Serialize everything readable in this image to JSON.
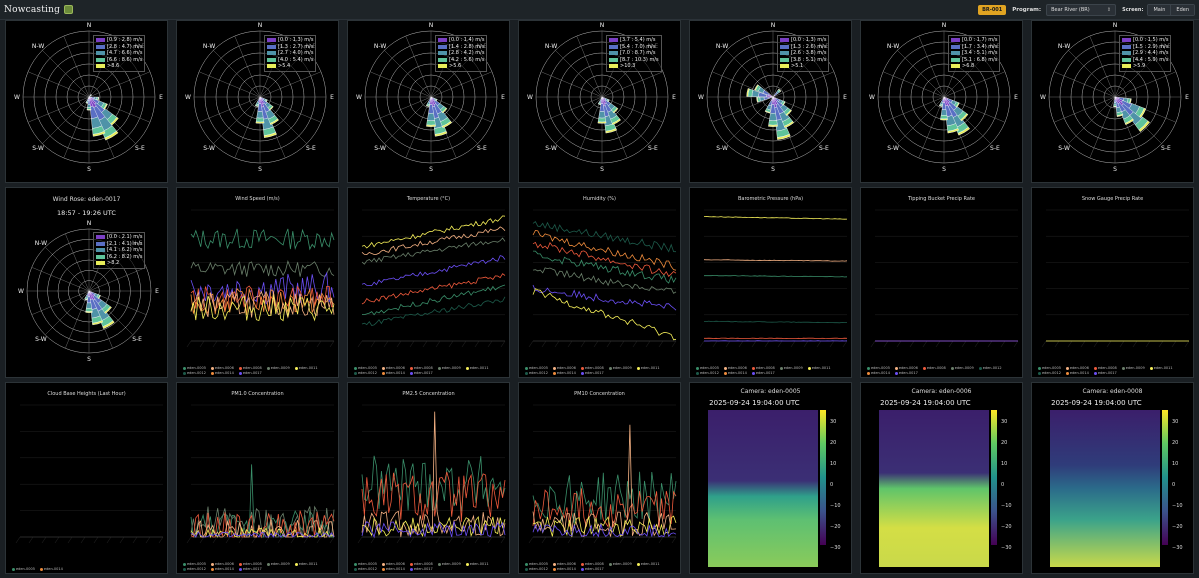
{
  "header": {
    "app_name": "Nowcasting",
    "badge": "BR-001",
    "program_label": "Program:",
    "program_value": "Bear River (BR)",
    "screen_label": "Screen:",
    "screen_buttons": [
      "Main",
      "Eden"
    ]
  },
  "colors": {
    "speed_bins": [
      "#7b3fc4",
      "#5a6fc4",
      "#4f93a8",
      "#5fc49a",
      "#e8ee5a"
    ],
    "stations": {
      "eden-0005": "#3a8f6a",
      "eden-0006": "#f4b183",
      "eden-0008": "#ef5a3c",
      "eden-0009": "#6a7f6a",
      "eden-0011": "#f6f05a",
      "eden-0012": "#1d5a4a",
      "eden-0014": "#f08c3c",
      "eden-0017": "#6b4ff5"
    }
  },
  "compass": [
    "N",
    "N-W",
    "W",
    "S-W",
    "S",
    "S-E",
    "E",
    "N-E"
  ],
  "wind_roses": [
    {
      "bins": [
        "[0.9 : 2.8) m/s",
        "[2.8 : 4.7) m/s",
        "[4.7 : 6.6) m/s",
        "[6.6 : 8.6) m/s",
        ">8.6"
      ],
      "petals": [
        [
          135,
          0.55
        ],
        [
          150,
          0.7
        ],
        [
          165,
          0.6
        ],
        [
          120,
          0.3
        ],
        [
          180,
          0.2
        ],
        [
          200,
          0.1
        ],
        [
          100,
          0.15
        ],
        [
          45,
          0.05
        ]
      ]
    },
    {
      "bins": [
        "[0.0 : 1.3) m/s",
        "[1.3 : 2.7) m/s",
        "[2.7 : 4.0) m/s",
        "[4.0 : 5.4) m/s",
        ">5.4"
      ],
      "petals": [
        [
          165,
          0.62
        ],
        [
          150,
          0.45
        ],
        [
          180,
          0.4
        ],
        [
          135,
          0.25
        ],
        [
          200,
          0.15
        ],
        [
          120,
          0.12
        ]
      ]
    },
    {
      "bins": [
        "[0.0 : 1.4) m/s",
        "[1.4 : 2.8) m/s",
        "[2.8 : 4.2) m/s",
        "[4.2 : 5.6) m/s",
        ">5.6"
      ],
      "petals": [
        [
          165,
          0.6
        ],
        [
          150,
          0.5
        ],
        [
          180,
          0.45
        ],
        [
          135,
          0.3
        ],
        [
          200,
          0.15
        ],
        [
          120,
          0.1
        ]
      ]
    },
    {
      "bins": [
        "[3.7 : 5.4) m/s",
        "[5.4 : 7.0) m/s",
        "[7.0 : 8.7) m/s",
        "[8.7 : 10.3) m/s",
        ">10.3"
      ],
      "petals": [
        [
          165,
          0.55
        ],
        [
          150,
          0.45
        ],
        [
          180,
          0.4
        ],
        [
          135,
          0.3
        ],
        [
          200,
          0.12
        ],
        [
          120,
          0.12
        ]
      ]
    },
    {
      "bins": [
        "[0.0 : 1.3) m/s",
        "[1.3 : 2.6) m/s",
        "[2.6 : 3.8) m/s",
        "[3.8 : 5.1) m/s",
        ">5.1"
      ],
      "petals": [
        [
          165,
          0.65
        ],
        [
          150,
          0.5
        ],
        [
          180,
          0.45
        ],
        [
          135,
          0.35
        ],
        [
          280,
          0.4
        ],
        [
          300,
          0.3
        ],
        [
          260,
          0.25
        ],
        [
          200,
          0.25
        ],
        [
          120,
          0.2
        ],
        [
          45,
          0.15
        ]
      ]
    },
    {
      "bins": [
        "[0.0 : 1.7) m/s",
        "[1.7 : 3.4) m/s",
        "[3.4 : 5.1) m/s",
        "[5.1 : 6.8) m/s",
        ">6.8"
      ],
      "petals": [
        [
          150,
          0.62
        ],
        [
          165,
          0.55
        ],
        [
          135,
          0.45
        ],
        [
          180,
          0.35
        ],
        [
          120,
          0.25
        ],
        [
          200,
          0.15
        ]
      ]
    },
    {
      "bins": [
        "[0.0 : 1.5) m/s",
        "[1.5 : 2.9) m/s",
        "[2.9 : 4.4) m/s",
        "[4.4 : 5.9) m/s",
        ">5.9"
      ],
      "petals": [
        [
          135,
          0.65
        ],
        [
          120,
          0.5
        ],
        [
          150,
          0.45
        ],
        [
          165,
          0.3
        ],
        [
          105,
          0.25
        ],
        [
          180,
          0.15
        ]
      ]
    }
  ],
  "wind_rose_eden": {
    "title": "Wind Rose: eden-0017",
    "subtitle": "18:57 - 19:26 UTC",
    "bins": [
      "[0.0 : 2.1) m/s",
      "[2.1 : 4.1) m/s",
      "[4.1 : 6.2) m/s",
      "[6.2 : 8.2) m/s",
      ">8.2"
    ],
    "petals": [
      [
        150,
        0.65
      ],
      [
        165,
        0.55
      ],
      [
        135,
        0.45
      ],
      [
        180,
        0.35
      ],
      [
        120,
        0.2
      ],
      [
        200,
        0.15
      ]
    ]
  },
  "charts": [
    {
      "id": "wind_speed",
      "title": "Wind Speed (m/s)",
      "legend": [
        "eden-0005",
        "eden-0006",
        "eden-0008",
        "eden-0009",
        "eden-0011",
        "eden-0012",
        "eden-0014",
        "eden-0017"
      ]
    },
    {
      "id": "temperature",
      "title": "Temperature (°C)",
      "legend": [
        "eden-0005",
        "eden-0006",
        "eden-0008",
        "eden-0009",
        "eden-0011",
        "eden-0012",
        "eden-0014",
        "eden-0017"
      ]
    },
    {
      "id": "humidity",
      "title": "Humidity (%)",
      "legend": [
        "eden-0005",
        "eden-0006",
        "eden-0008",
        "eden-0009",
        "eden-0011",
        "eden-0012",
        "eden-0014",
        "eden-0017"
      ]
    },
    {
      "id": "pressure",
      "title": "Barometric Pressure (hPa)",
      "legend": [
        "eden-0005",
        "eden-0006",
        "eden-0008",
        "eden-0009",
        "eden-0011",
        "eden-0012",
        "eden-0014",
        "eden-0017"
      ]
    },
    {
      "id": "tipping",
      "title": "Tipping Bucket Precip Rate",
      "legend": [
        "eden-0005",
        "eden-0006",
        "eden-0008",
        "eden-0009",
        "eden-0012",
        "eden-0014",
        "eden-0017"
      ]
    },
    {
      "id": "snow",
      "title": "Snow Gauge Precip Rate",
      "legend": [
        "eden-0005",
        "eden-0006",
        "eden-0008",
        "eden-0009",
        "eden-0011",
        "eden-0012",
        "eden-0014",
        "eden-0017"
      ]
    },
    {
      "id": "cloud",
      "title": "Cloud Base Heights (Last Hour)",
      "legend": [
        "eden-0005",
        "eden-0014"
      ]
    },
    {
      "id": "pm10",
      "title": "PM1.0 Concentration",
      "legend": [
        "eden-0005",
        "eden-0006",
        "eden-0008",
        "eden-0009",
        "eden-0011",
        "eden-0012",
        "eden-0014",
        "eden-0017"
      ]
    },
    {
      "id": "pm25",
      "title": "PM2.5 Concentration",
      "legend": [
        "eden-0005",
        "eden-0006",
        "eden-0008",
        "eden-0009",
        "eden-0011",
        "eden-0012",
        "eden-0014",
        "eden-0017"
      ]
    },
    {
      "id": "pm100",
      "title": "PM10 Concentration",
      "legend": [
        "eden-0005",
        "eden-0006",
        "eden-0008",
        "eden-0009",
        "eden-0011",
        "eden-0012",
        "eden-0014",
        "eden-0017"
      ]
    }
  ],
  "chart_data": [
    {
      "type": "line",
      "title": "Wind Speed (m/s)",
      "series": [
        {
          "name": "eden-0005",
          "level": 0.78,
          "amp": 0.08
        },
        {
          "name": "eden-0009",
          "level": 0.55,
          "amp": 0.06
        },
        {
          "name": "eden-0017",
          "level": 0.4,
          "amp": 0.12
        },
        {
          "name": "eden-0008",
          "level": 0.32,
          "amp": 0.1
        },
        {
          "name": "eden-0014",
          "level": 0.3,
          "amp": 0.1
        },
        {
          "name": "eden-0006",
          "level": 0.28,
          "amp": 0.1
        },
        {
          "name": "eden-0011",
          "level": 0.25,
          "amp": 0.1
        }
      ]
    },
    {
      "type": "line",
      "title": "Temperature (°C)",
      "series": [
        {
          "name": "eden-0011",
          "level": 0.72,
          "slope": 0.22,
          "amp": 0.02
        },
        {
          "name": "eden-0006",
          "level": 0.66,
          "slope": 0.2,
          "amp": 0.02
        },
        {
          "name": "eden-0009",
          "level": 0.6,
          "slope": 0.18,
          "amp": 0.02
        },
        {
          "name": "eden-0017",
          "level": 0.42,
          "slope": 0.22,
          "amp": 0.02
        },
        {
          "name": "eden-0008",
          "level": 0.3,
          "slope": 0.2,
          "amp": 0.02
        },
        {
          "name": "eden-0005",
          "level": 0.2,
          "slope": 0.22,
          "amp": 0.02
        },
        {
          "name": "eden-0012",
          "level": 0.12,
          "slope": 0.2,
          "amp": 0.02
        }
      ]
    },
    {
      "type": "line",
      "title": "Humidity (%)",
      "series": [
        {
          "name": "eden-0012",
          "level": 0.9,
          "slope": -0.2,
          "amp": 0.03
        },
        {
          "name": "eden-0014",
          "level": 0.82,
          "slope": -0.25,
          "amp": 0.03
        },
        {
          "name": "eden-0008",
          "level": 0.75,
          "slope": -0.25,
          "amp": 0.03
        },
        {
          "name": "eden-0005",
          "level": 0.66,
          "slope": -0.2,
          "amp": 0.03
        },
        {
          "name": "eden-0009",
          "level": 0.55,
          "slope": -0.18,
          "amp": 0.03
        },
        {
          "name": "eden-0017",
          "level": 0.4,
          "slope": -0.15,
          "amp": 0.03
        },
        {
          "name": "eden-0011",
          "level": 0.38,
          "slope": -0.35,
          "amp": 0.03
        }
      ]
    },
    {
      "type": "line",
      "title": "Barometric Pressure (hPa)",
      "series": [
        {
          "name": "eden-0011",
          "level": 0.95,
          "slope": -0.02,
          "amp": 0.002
        },
        {
          "name": "eden-0006",
          "level": 0.62,
          "slope": -0.01,
          "amp": 0.002
        },
        {
          "name": "eden-0005",
          "level": 0.5,
          "slope": -0.01,
          "amp": 0.002
        },
        {
          "name": "eden-0012",
          "level": 0.15,
          "slope": -0.01,
          "amp": 0.002
        },
        {
          "name": "eden-0008",
          "level": 0.02,
          "slope": 0.0,
          "amp": 0.002
        },
        {
          "name": "eden-0017",
          "level": 0.0,
          "slope": 0.0,
          "amp": 0.002
        }
      ]
    },
    {
      "type": "line",
      "title": "Tipping Bucket Precip Rate",
      "series": [
        {
          "name": "eden-0008",
          "level": 0.0,
          "amp": 0.0
        },
        {
          "name": "eden-0017",
          "level": 0.0,
          "amp": 0.0
        }
      ]
    },
    {
      "type": "line",
      "title": "Snow Gauge Precip Rate",
      "series": [
        {
          "name": "eden-0011",
          "level": 0.0,
          "amp": 0.0
        }
      ]
    },
    {
      "type": "line",
      "title": "Cloud Base Heights (Last Hour)",
      "series": []
    },
    {
      "type": "line",
      "title": "PM1.0 Concentration",
      "series": [
        {
          "name": "eden-0005",
          "level": 0.08,
          "amp": 0.12
        },
        {
          "name": "eden-0009",
          "level": 0.1,
          "amp": 0.15
        },
        {
          "name": "eden-0008",
          "level": 0.05,
          "amp": 0.15
        },
        {
          "name": "eden-0006",
          "level": 0.03,
          "amp": 0.1
        },
        {
          "name": "eden-0011",
          "level": 0.02,
          "amp": 0.05
        },
        {
          "name": "eden-0017",
          "level": 0.01,
          "amp": 0.03
        }
      ]
    },
    {
      "type": "line",
      "title": "PM2.5 Concentration",
      "series": [
        {
          "name": "eden-0005",
          "level": 0.4,
          "amp": 0.22
        },
        {
          "name": "eden-0008",
          "level": 0.3,
          "amp": 0.2
        },
        {
          "name": "eden-0006",
          "level": 0.1,
          "amp": 0.1
        },
        {
          "name": "eden-0011",
          "level": 0.08,
          "amp": 0.08
        },
        {
          "name": "eden-0017",
          "level": 0.06,
          "amp": 0.06
        }
      ]
    },
    {
      "type": "line",
      "title": "PM10 Concentration",
      "series": [
        {
          "name": "eden-0005",
          "level": 0.3,
          "amp": 0.2
        },
        {
          "name": "eden-0008",
          "level": 0.22,
          "amp": 0.15
        },
        {
          "name": "eden-0006",
          "level": 0.1,
          "amp": 0.1
        },
        {
          "name": "eden-0011",
          "level": 0.08,
          "amp": 0.08
        },
        {
          "name": "eden-0017",
          "level": 0.05,
          "amp": 0.05
        }
      ]
    }
  ],
  "cameras": [
    {
      "title": "Camera: eden-0005",
      "timestamp": "2025-09-24 19:04:00 UTC",
      "scale": [
        "30",
        "20",
        "10",
        "0",
        "−10",
        "−20",
        "−30"
      ]
    },
    {
      "title": "Camera: eden-0006",
      "timestamp": "2025-09-24 19:04:00 UTC",
      "scale": [
        "30",
        "20",
        "10",
        "0",
        "−10",
        "−20",
        "−30"
      ]
    },
    {
      "title": "Camera: eden-0008",
      "timestamp": "2025-09-24 19:04:00 UTC",
      "scale": [
        "30",
        "20",
        "10",
        "0",
        "−10",
        "−20",
        "−30"
      ]
    }
  ]
}
